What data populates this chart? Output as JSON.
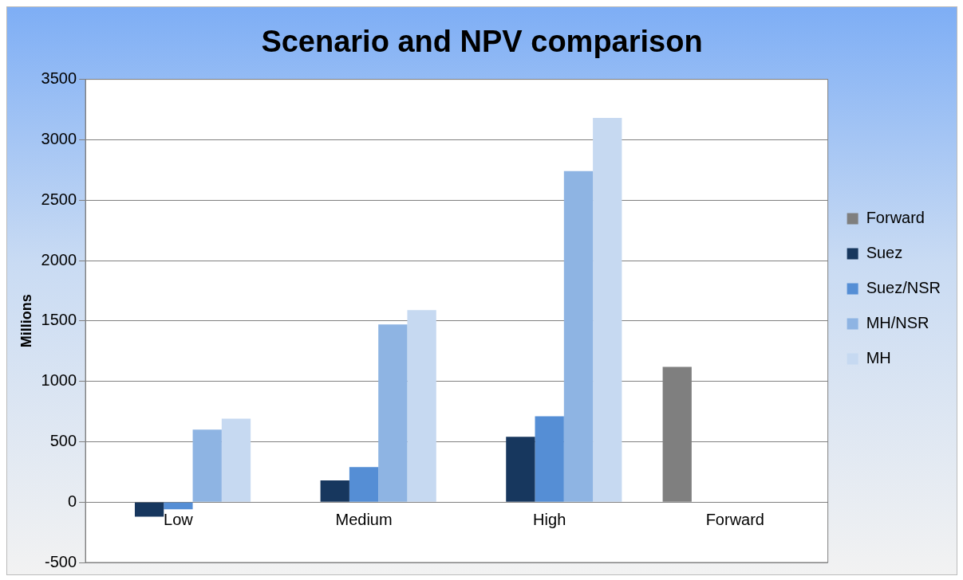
{
  "chart_data": {
    "type": "bar",
    "title": "Scenario and NPV comparison",
    "ylabel": "Millions",
    "categories": [
      "Low",
      "Medium",
      "High",
      "Forward"
    ],
    "series": [
      {
        "name": "Forward",
        "color": "#7f7f7f",
        "values": [
          null,
          null,
          null,
          1120
        ]
      },
      {
        "name": "Suez",
        "color": "#17375e",
        "values": [
          -120,
          180,
          540,
          null
        ]
      },
      {
        "name": "Suez/NSR",
        "color": "#558ed5",
        "values": [
          -60,
          290,
          710,
          null
        ]
      },
      {
        "name": "MH/NSR",
        "color": "#8eb4e3",
        "values": [
          600,
          1470,
          2740,
          null
        ]
      },
      {
        "name": "MH",
        "color": "#c6d9f1",
        "values": [
          690,
          1590,
          3180,
          null
        ]
      }
    ],
    "ylim": [
      -500,
      3500
    ],
    "yticks": [
      -500,
      0,
      500,
      1000,
      1500,
      2000,
      2500,
      3000,
      3500
    ],
    "grid": "y",
    "legend": "right"
  }
}
